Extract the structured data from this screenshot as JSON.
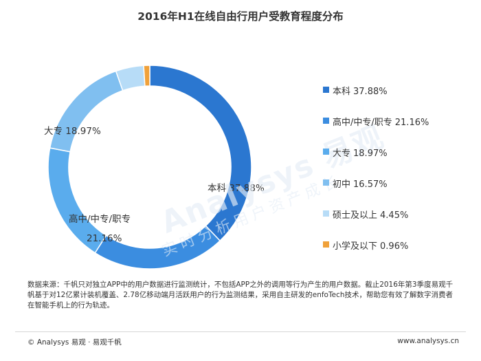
{
  "title": "2016年H1在线自由行用户受教育程度分布",
  "chart_data": {
    "type": "pie",
    "title": "2016年H1在线自由行用户受教育程度分布",
    "series": [
      {
        "name": "本科",
        "value": 37.88,
        "label": "37.88%",
        "color": "#2b77d0"
      },
      {
        "name": "高中/中专/职专",
        "value": 21.16,
        "label": "21.16%",
        "color": "#3b8de0"
      },
      {
        "name": "大专",
        "value": 18.97,
        "label": "18.97%",
        "color": "#5aaced"
      },
      {
        "name": "初中",
        "value": 16.57,
        "label": "16.57%",
        "color": "#80bff0"
      },
      {
        "name": "硕士及以上",
        "value": 4.45,
        "label": "4.45%",
        "color": "#b7dcf7"
      },
      {
        "name": "小学及以下",
        "value": 0.96,
        "label": "0.96%",
        "color": "#f0a13a"
      }
    ],
    "donut": true,
    "legend_position": "right"
  },
  "source_note": "数据来源：千帆只对独立APP中的用户数据进行监测统计，不包括APP之外的调用等行为产生的用户数据。截止2016年第3季度易观千帆基于对12亿累计装机覆盖、2.78亿移动端月活跃用户的行为监测结果，采用自主研发的enfoTech技术，帮助您有效了解数字消费者在智能手机上的行为轨迹。",
  "footer": {
    "left": "© Analysys 易观 · 易观千帆",
    "right": "www.analysys.cn"
  }
}
